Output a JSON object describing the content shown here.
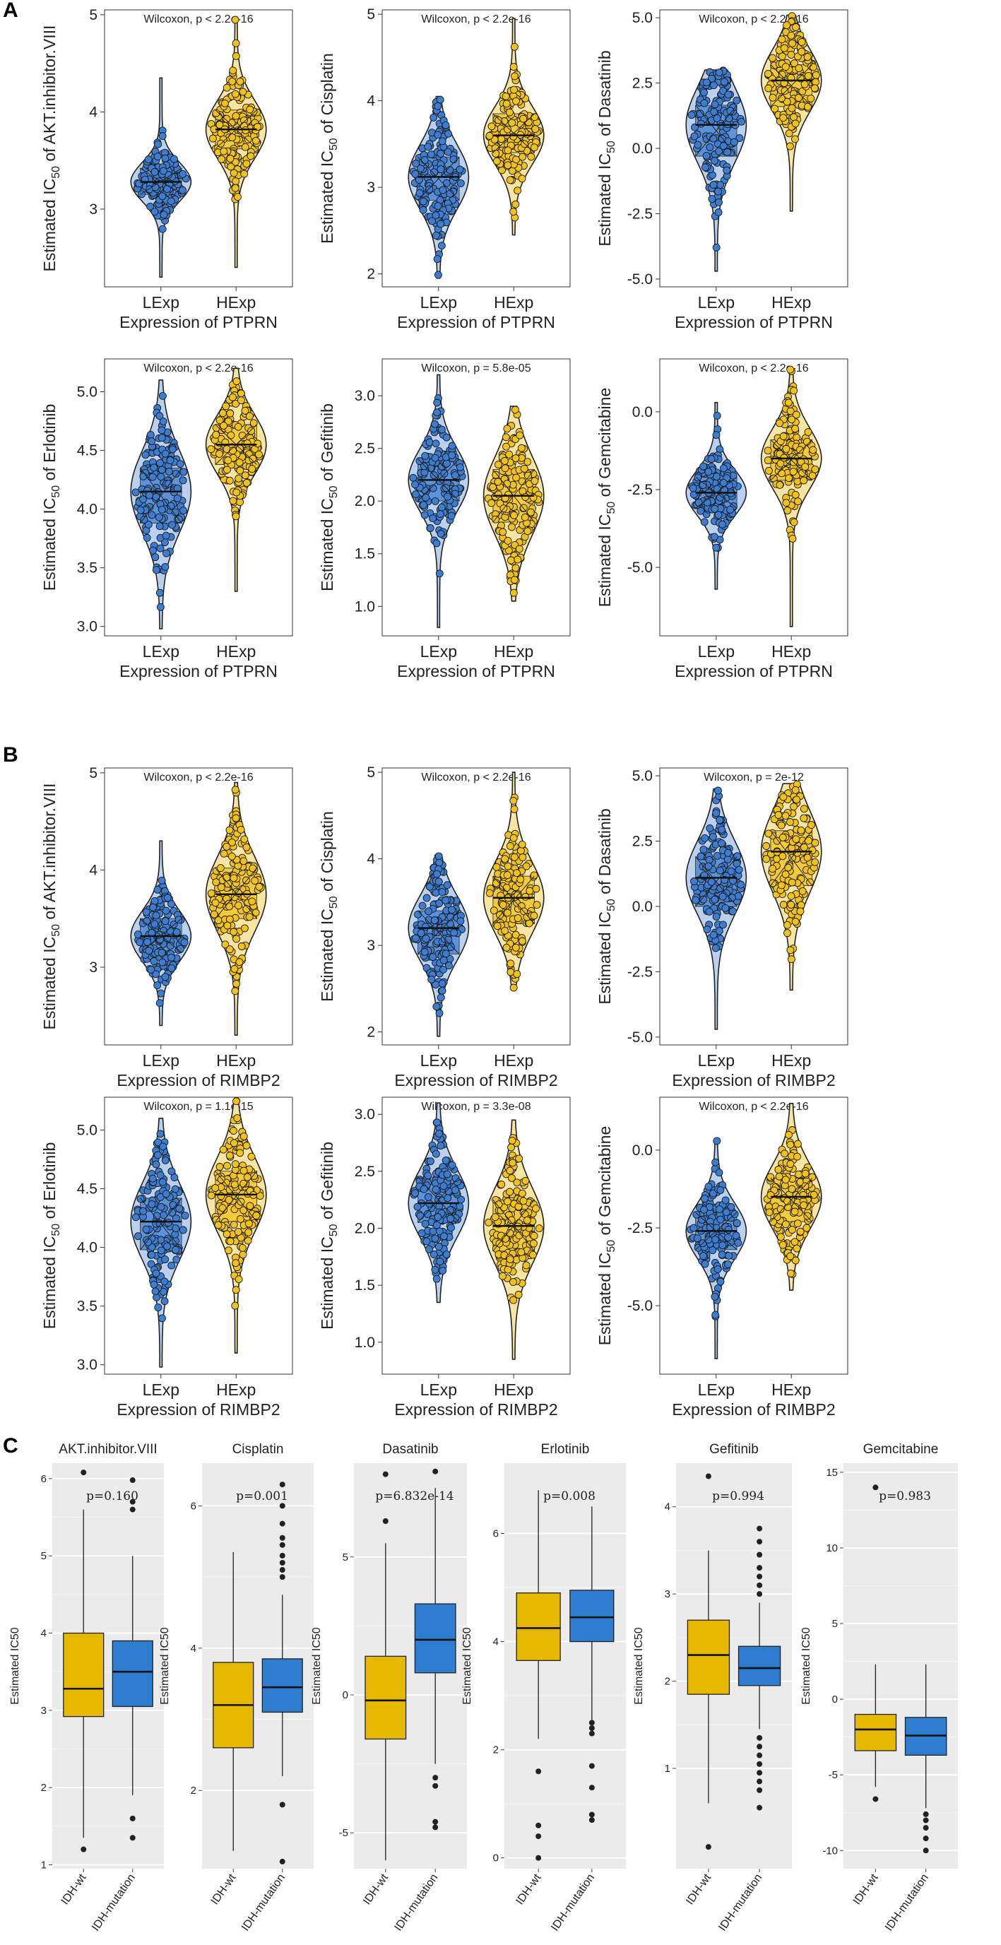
{
  "figure": {
    "panel_labels": [
      "A",
      "B",
      "C"
    ],
    "colors": {
      "lexp": "#3d7dd1",
      "lexp_light": "#b9d0ee",
      "hexp": "#f2c21a",
      "hexp_light": "#f8e5a2",
      "idh_wt": "#e7b800",
      "idh_mut": "#2e7dd1",
      "ggplot_panel": "#ebebeb"
    }
  },
  "chart_data": [
    {
      "panel": "A",
      "type": "violin-box",
      "drug": "AKT.inhibitor.VIII",
      "title": "Wilcoxon, p < 2.2e-16",
      "ylabel_pre": "Estimated IC",
      "ylabel_sub": "50",
      "ylabel_post": " of AKT.inhibitor.VIII",
      "xlabel": "Expression of PTPRN",
      "categories": [
        "LExp",
        "HExp"
      ],
      "ylim": [
        2.2,
        5.05
      ],
      "yticks": [
        3,
        4,
        5
      ],
      "groups": [
        {
          "name": "LExp",
          "q1": 3.15,
          "median": 3.28,
          "q3": 3.42,
          "min": 2.3,
          "max": 4.35
        },
        {
          "name": "HExp",
          "q1": 3.62,
          "median": 3.82,
          "q3": 4.02,
          "min": 2.4,
          "max": 4.95
        }
      ]
    },
    {
      "panel": "A",
      "type": "violin-box",
      "drug": "Cisplatin",
      "title": "Wilcoxon, p < 2.2e-16",
      "ylabel_pre": "Estimated IC",
      "ylabel_sub": "50",
      "ylabel_post": " of Cisplatin",
      "xlabel": "Expression of PTPRN",
      "categories": [
        "LExp",
        "HExp"
      ],
      "ylim": [
        1.85,
        5.05
      ],
      "yticks": [
        2,
        3,
        4,
        5
      ],
      "groups": [
        {
          "name": "LExp",
          "q1": 2.85,
          "median": 3.12,
          "q3": 3.35,
          "min": 1.95,
          "max": 4.05
        },
        {
          "name": "HExp",
          "q1": 3.4,
          "median": 3.6,
          "q3": 3.85,
          "min": 2.45,
          "max": 4.95
        }
      ]
    },
    {
      "panel": "A",
      "type": "violin-box",
      "drug": "Dasatinib",
      "title": "Wilcoxon, p < 2.2e-16",
      "ylabel_pre": "Estimated IC",
      "ylabel_sub": "50",
      "ylabel_post": " of Dasatinib",
      "xlabel": "Expression of PTPRN",
      "categories": [
        "LExp",
        "HExp"
      ],
      "ylim": [
        -5.3,
        5.3
      ],
      "yticks": [
        -5.0,
        -2.5,
        0.0,
        2.5,
        5.0
      ],
      "groups": [
        {
          "name": "LExp",
          "q1": -0.3,
          "median": 0.9,
          "q3": 1.65,
          "min": -4.7,
          "max": 3.0
        },
        {
          "name": "HExp",
          "q1": 1.6,
          "median": 2.6,
          "q3": 3.2,
          "min": -2.4,
          "max": 5.1
        }
      ]
    },
    {
      "panel": "A",
      "type": "violin-box",
      "drug": "Erlotinib",
      "title": "Wilcoxon, p < 2.2e-16",
      "ylabel_pre": "Estimated IC",
      "ylabel_sub": "50",
      "ylabel_post": " of Erlotinib",
      "xlabel": "Expression of PTPRN",
      "categories": [
        "LExp",
        "HExp"
      ],
      "ylim": [
        2.92,
        5.28
      ],
      "yticks": [
        3.0,
        3.5,
        4.0,
        4.5,
        5.0
      ],
      "groups": [
        {
          "name": "LExp",
          "q1": 3.88,
          "median": 4.15,
          "q3": 4.35,
          "min": 2.98,
          "max": 5.1
        },
        {
          "name": "HExp",
          "q1": 4.38,
          "median": 4.55,
          "q3": 4.72,
          "min": 3.3,
          "max": 5.2
        }
      ]
    },
    {
      "panel": "A",
      "type": "violin-box",
      "drug": "Gefitinib",
      "title": "Wilcoxon, p = 5.8e-05",
      "ylabel_pre": "Estimated IC",
      "ylabel_sub": "50",
      "ylabel_post": " of Gefitinib",
      "xlabel": "Expression of PTPRN",
      "categories": [
        "LExp",
        "HExp"
      ],
      "ylim": [
        0.72,
        3.35
      ],
      "yticks": [
        1.0,
        1.5,
        2.0,
        2.5,
        3.0
      ],
      "groups": [
        {
          "name": "LExp",
          "q1": 2.0,
          "median": 2.2,
          "q3": 2.4,
          "min": 0.8,
          "max": 3.2
        },
        {
          "name": "HExp",
          "q1": 1.8,
          "median": 2.05,
          "q3": 2.3,
          "min": 1.05,
          "max": 2.9
        }
      ]
    },
    {
      "panel": "A",
      "type": "violin-box",
      "drug": "Gemcitabine",
      "title": "Wilcoxon, p < 2.2e-16",
      "ylabel_pre": "Estimated IC",
      "ylabel_sub": "50",
      "ylabel_post": " of Gemcitabine",
      "xlabel": "Expression of PTPRN",
      "categories": [
        "LExp",
        "HExp"
      ],
      "ylim": [
        -7.2,
        1.7
      ],
      "yticks": [
        -5.0,
        -2.5,
        0.0
      ],
      "groups": [
        {
          "name": "LExp",
          "q1": -3.1,
          "median": -2.6,
          "q3": -2.1,
          "min": -5.7,
          "max": 0.3
        },
        {
          "name": "HExp",
          "q1": -2.2,
          "median": -1.5,
          "q3": -0.9,
          "min": -6.9,
          "max": 1.4
        }
      ]
    },
    {
      "panel": "B",
      "type": "violin-box",
      "drug": "AKT.inhibitor.VIII",
      "title": "Wilcoxon, p < 2.2e-16",
      "ylabel_pre": "Estimated IC",
      "ylabel_sub": "50",
      "ylabel_post": " of AKT.inhibitor.VIII",
      "xlabel": "Expression of RIMBP2",
      "categories": [
        "LExp",
        "HExp"
      ],
      "ylim": [
        2.2,
        5.05
      ],
      "yticks": [
        3,
        4,
        5
      ],
      "groups": [
        {
          "name": "LExp",
          "q1": 3.15,
          "median": 3.32,
          "q3": 3.5,
          "min": 2.4,
          "max": 4.3
        },
        {
          "name": "HExp",
          "q1": 3.5,
          "median": 3.75,
          "q3": 4.02,
          "min": 2.3,
          "max": 4.9
        }
      ]
    },
    {
      "panel": "B",
      "type": "violin-box",
      "drug": "Cisplatin",
      "title": "Wilcoxon, p < 2.2e-16",
      "ylabel_pre": "Estimated IC",
      "ylabel_sub": "50",
      "ylabel_post": " of Cisplatin",
      "xlabel": "Expression of RIMBP2",
      "categories": [
        "LExp",
        "HExp"
      ],
      "ylim": [
        1.85,
        5.05
      ],
      "yticks": [
        2,
        3,
        4,
        5
      ],
      "groups": [
        {
          "name": "LExp",
          "q1": 2.9,
          "median": 3.2,
          "q3": 3.4,
          "min": 1.95,
          "max": 4.05
        },
        {
          "name": "HExp",
          "q1": 3.25,
          "median": 3.55,
          "q3": 3.8,
          "min": 2.5,
          "max": 5.0
        }
      ]
    },
    {
      "panel": "B",
      "type": "violin-box",
      "drug": "Dasatinib",
      "title": "Wilcoxon, p = 2e-12",
      "ylabel_pre": "Estimated IC",
      "ylabel_sub": "50",
      "ylabel_post": " of Dasatinib",
      "xlabel": "Expression of RIMBP2",
      "categories": [
        "LExp",
        "HExp"
      ],
      "ylim": [
        -5.3,
        5.3
      ],
      "yticks": [
        -5.0,
        -2.5,
        0.0,
        2.5,
        5.0
      ],
      "groups": [
        {
          "name": "LExp",
          "q1": 0.0,
          "median": 1.1,
          "q3": 1.9,
          "min": -4.7,
          "max": 4.5
        },
        {
          "name": "HExp",
          "q1": 0.8,
          "median": 2.1,
          "q3": 2.9,
          "min": -3.2,
          "max": 4.7
        }
      ]
    },
    {
      "panel": "B",
      "type": "violin-box",
      "drug": "Erlotinib",
      "title": "Wilcoxon, p = 1.1e-15",
      "ylabel_pre": "Estimated IC",
      "ylabel_sub": "50",
      "ylabel_post": " of Erlotinib",
      "xlabel": "Expression of RIMBP2",
      "categories": [
        "LExp",
        "HExp"
      ],
      "ylim": [
        2.92,
        5.28
      ],
      "yticks": [
        3.0,
        3.5,
        4.0,
        4.5,
        5.0
      ],
      "groups": [
        {
          "name": "LExp",
          "q1": 3.98,
          "median": 4.22,
          "q3": 4.42,
          "min": 2.98,
          "max": 5.1
        },
        {
          "name": "HExp",
          "q1": 4.22,
          "median": 4.45,
          "q3": 4.65,
          "min": 3.1,
          "max": 5.25
        }
      ]
    },
    {
      "panel": "B",
      "type": "violin-box",
      "drug": "Gefitinib",
      "title": "Wilcoxon, p = 3.3e-08",
      "ylabel_pre": "Estimated IC",
      "ylabel_sub": "50",
      "ylabel_post": " of Gefitinib",
      "xlabel": "Expression of RIMBP2",
      "categories": [
        "LExp",
        "HExp"
      ],
      "ylim": [
        0.72,
        3.15
      ],
      "yticks": [
        1.0,
        1.5,
        2.0,
        2.5,
        3.0
      ],
      "groups": [
        {
          "name": "LExp",
          "q1": 2.05,
          "median": 2.22,
          "q3": 2.45,
          "min": 1.35,
          "max": 3.1
        },
        {
          "name": "HExp",
          "q1": 1.8,
          "median": 2.02,
          "q3": 2.25,
          "min": 0.85,
          "max": 2.95
        }
      ]
    },
    {
      "panel": "B",
      "type": "violin-box",
      "drug": "Gemcitabine",
      "title": "Wilcoxon, p < 2.2e-16",
      "ylabel_pre": "Estimated IC",
      "ylabel_sub": "50",
      "ylabel_post": " of Gemcitabine",
      "xlabel": "Expression of RIMBP2",
      "categories": [
        "LExp",
        "HExp"
      ],
      "ylim": [
        -7.2,
        1.7
      ],
      "yticks": [
        -5.0,
        -2.5,
        0.0
      ],
      "groups": [
        {
          "name": "LExp",
          "q1": -3.2,
          "median": -2.6,
          "q3": -2.0,
          "min": -6.7,
          "max": 0.3
        },
        {
          "name": "HExp",
          "q1": -2.3,
          "median": -1.5,
          "q3": -0.9,
          "min": -4.5,
          "max": 1.5
        }
      ]
    },
    {
      "panel": "C",
      "type": "box",
      "title": "AKT.inhibitor.VIII",
      "annotation": "p=0.160",
      "ylabel": "Estimated IC50",
      "categories": [
        "IDH-wt",
        "IDH-mutation"
      ],
      "ylim": [
        0.95,
        6.2
      ],
      "yticks": [
        1,
        2,
        3,
        4,
        5,
        6
      ],
      "groups": [
        {
          "name": "IDH-wt",
          "q1": 2.92,
          "median": 3.28,
          "q3": 4.0,
          "min": 1.35,
          "max": 5.6,
          "outliers": [
            1.2,
            6.08
          ]
        },
        {
          "name": "IDH-mutation",
          "q1": 3.05,
          "median": 3.5,
          "q3": 3.9,
          "min": 1.9,
          "max": 5.0,
          "outliers": [
            5.6,
            5.7,
            5.98,
            1.6,
            1.35
          ]
        }
      ]
    },
    {
      "panel": "C",
      "type": "box",
      "title": "Cisplatin",
      "annotation": "p=0.001",
      "ylabel": "Estimated IC50",
      "categories": [
        "IDH-wt",
        "IDH-mutation"
      ],
      "ylim": [
        0.9,
        6.6
      ],
      "yticks": [
        2,
        4,
        6
      ],
      "groups": [
        {
          "name": "IDH-wt",
          "q1": 2.6,
          "median": 3.2,
          "q3": 3.8,
          "min": 1.15,
          "max": 5.35,
          "outliers": []
        },
        {
          "name": "IDH-mutation",
          "q1": 3.1,
          "median": 3.45,
          "q3": 3.85,
          "min": 2.2,
          "max": 4.75,
          "outliers": [
            5.0,
            5.1,
            5.2,
            5.3,
            5.45,
            5.55,
            5.75,
            6.0,
            6.3,
            1.8,
            1.0
          ]
        }
      ]
    },
    {
      "panel": "C",
      "type": "box",
      "title": "Dasatinib",
      "annotation": "p=6.832e-14",
      "ylabel": "Estimated IC50",
      "categories": [
        "IDH-wt",
        "IDH-mutation"
      ],
      "ylim": [
        -6.3,
        8.4
      ],
      "yticks": [
        -5,
        0,
        5
      ],
      "groups": [
        {
          "name": "IDH-wt",
          "q1": -1.6,
          "median": -0.2,
          "q3": 1.4,
          "min": -6.0,
          "max": 5.5,
          "outliers": [
            6.3,
            8.0
          ]
        },
        {
          "name": "IDH-mutation",
          "q1": 0.8,
          "median": 2.0,
          "q3": 3.3,
          "min": -2.5,
          "max": 7.5,
          "outliers": [
            8.1,
            -3.0,
            -3.3,
            -4.6,
            -4.8
          ]
        }
      ]
    },
    {
      "panel": "C",
      "type": "box",
      "title": "Erlotinib",
      "annotation": "p=0.008",
      "ylabel": "Estimated IC50",
      "categories": [
        "IDH-wt",
        "IDH-mutation"
      ],
      "ylim": [
        -0.2,
        7.3
      ],
      "yticks": [
        0,
        2,
        4,
        6
      ],
      "groups": [
        {
          "name": "IDH-wt",
          "q1": 3.65,
          "median": 4.25,
          "q3": 4.9,
          "min": 2.2,
          "max": 6.8,
          "outliers": [
            1.6,
            0.6,
            0.4,
            0.0
          ]
        },
        {
          "name": "IDH-mutation",
          "q1": 4.0,
          "median": 4.45,
          "q3": 4.95,
          "min": 2.55,
          "max": 6.5,
          "outliers": [
            2.5,
            2.4,
            2.3,
            1.7,
            1.3,
            0.8,
            0.7
          ]
        }
      ]
    },
    {
      "panel": "C",
      "type": "box",
      "title": "Gefitinib",
      "annotation": "p=0.994",
      "ylabel": "Estimated IC50",
      "categories": [
        "IDH-wt",
        "IDH-mutation"
      ],
      "ylim": [
        -0.15,
        4.5
      ],
      "yticks": [
        1,
        2,
        3,
        4
      ],
      "groups": [
        {
          "name": "IDH-wt",
          "q1": 1.85,
          "median": 2.3,
          "q3": 2.7,
          "min": 0.6,
          "max": 3.5,
          "outliers": [
            0.1,
            4.35
          ]
        },
        {
          "name": "IDH-mutation",
          "q1": 1.95,
          "median": 2.15,
          "q3": 2.4,
          "min": 1.45,
          "max": 2.9,
          "outliers": [
            3.0,
            3.1,
            3.2,
            3.3,
            3.45,
            3.6,
            3.75,
            1.35,
            1.25,
            1.15,
            1.05,
            0.95,
            0.85,
            0.75,
            0.55
          ]
        }
      ]
    },
    {
      "panel": "C",
      "type": "box",
      "title": "Gemcitabine",
      "annotation": "p=0.983",
      "ylabel": "Estimated IC50",
      "categories": [
        "IDH-wt",
        "IDH-mutation"
      ],
      "ylim": [
        -11.2,
        15.6
      ],
      "yticks": [
        -10,
        -5,
        0,
        5,
        10,
        15
      ],
      "groups": [
        {
          "name": "IDH-wt",
          "q1": -3.4,
          "median": -2.0,
          "q3": -1.0,
          "min": -5.8,
          "max": 2.3,
          "outliers": [
            -6.6,
            14.0
          ]
        },
        {
          "name": "IDH-mutation",
          "q1": -3.7,
          "median": -2.4,
          "q3": -1.2,
          "min": -7.2,
          "max": 2.3,
          "outliers": [
            -7.6,
            -8.0,
            -8.5,
            -9.2,
            -10.0
          ]
        }
      ]
    }
  ]
}
